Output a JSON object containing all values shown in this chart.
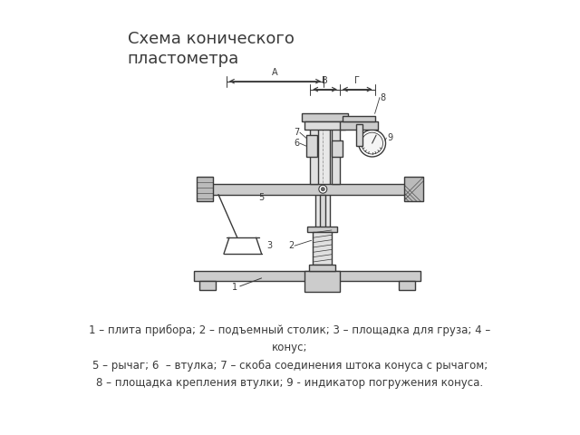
{
  "title": "Схема конического\nпластометра",
  "title_fontsize": 13,
  "caption_line1": "1 – плита прибора; 2 – подъемный столик; 3 – площадка для груза; 4 –",
  "caption_line1b": "конус;",
  "caption_line2": " 5 – рычаг; 6  – втулка; 7 – скоба соединения штока конуса с рычагом;",
  "caption_line3": " 8 – площадка крепления втулки; 9 - индикатор погружения конуса.",
  "bg_color": "#ffffff",
  "line_color": "#3a3a3a",
  "line_width": 1.0
}
